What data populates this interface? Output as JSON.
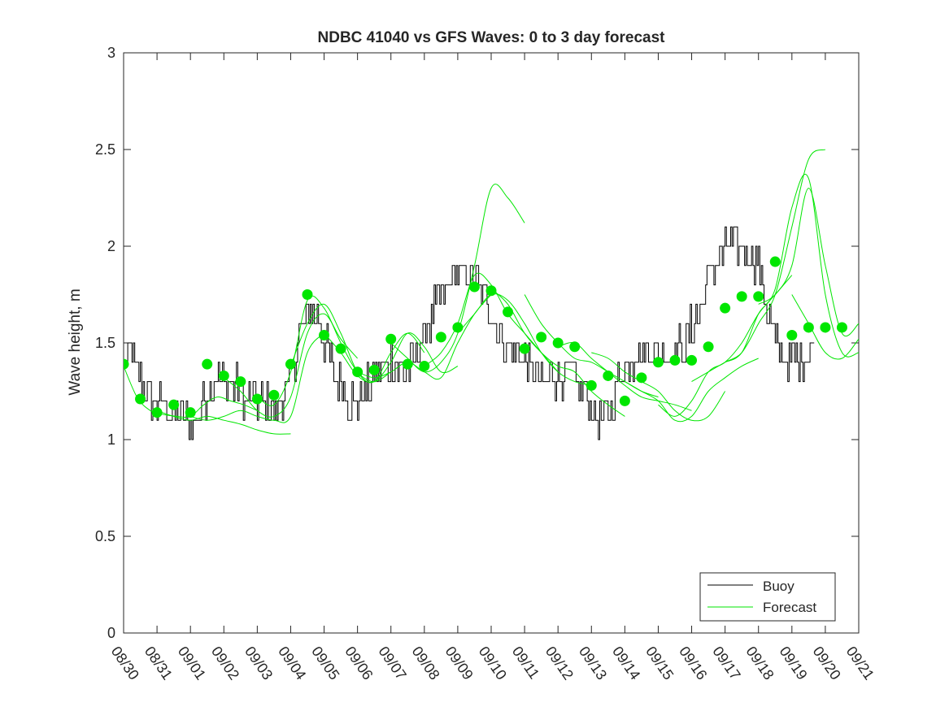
{
  "chart_data": {
    "type": "line",
    "title": "NDBC 41040 vs GFS Waves: 0 to 3 day forecast",
    "ylabel": "Wave height, m",
    "xlabel": "",
    "ylim": [
      0,
      3
    ],
    "yticks": [
      0,
      0.5,
      1,
      1.5,
      2,
      2.5,
      3
    ],
    "ytick_labels": [
      "0",
      "0.5",
      "1",
      "1.5",
      "2",
      "2.5",
      "3"
    ],
    "x_range_days": [
      0,
      22
    ],
    "xticks": [
      "08/30",
      "08/31",
      "09/01",
      "09/02",
      "09/03",
      "09/04",
      "09/05",
      "09/06",
      "09/07",
      "09/08",
      "09/09",
      "09/10",
      "09/11",
      "09/12",
      "09/13",
      "09/14",
      "09/15",
      "09/16",
      "09/17",
      "09/18",
      "09/19",
      "09/20",
      "09/21"
    ],
    "legend": {
      "location": "bottom-right",
      "entries": [
        "Buoy",
        "Forecast"
      ]
    },
    "colors": {
      "buoy": "#000000",
      "forecast": "#00e600",
      "axis": "#262626"
    },
    "buoy_key_points": [
      [
        0.0,
        1.4
      ],
      [
        0.25,
        1.45
      ],
      [
        0.5,
        1.3
      ],
      [
        0.75,
        1.2
      ],
      [
        1.0,
        1.18
      ],
      [
        1.5,
        1.15
      ],
      [
        1.9,
        1.1
      ],
      [
        2.0,
        1.05
      ],
      [
        2.3,
        1.15
      ],
      [
        2.5,
        1.25
      ],
      [
        2.8,
        1.32
      ],
      [
        3.2,
        1.3
      ],
      [
        3.6,
        1.22
      ],
      [
        4.0,
        1.2
      ],
      [
        4.3,
        1.18
      ],
      [
        4.5,
        1.15
      ],
      [
        4.9,
        1.25
      ],
      [
        5.2,
        1.5
      ],
      [
        5.5,
        1.65
      ],
      [
        5.8,
        1.62
      ],
      [
        6.0,
        1.5
      ],
      [
        6.3,
        1.35
      ],
      [
        6.6,
        1.25
      ],
      [
        6.8,
        1.2
      ],
      [
        7.0,
        1.2
      ],
      [
        7.3,
        1.28
      ],
      [
        7.7,
        1.35
      ],
      [
        8.0,
        1.4
      ],
      [
        8.3,
        1.35
      ],
      [
        8.6,
        1.38
      ],
      [
        8.9,
        1.5
      ],
      [
        9.2,
        1.62
      ],
      [
        9.5,
        1.75
      ],
      [
        9.8,
        1.85
      ],
      [
        10.1,
        1.85
      ],
      [
        10.5,
        1.82
      ],
      [
        10.8,
        1.75
      ],
      [
        11.1,
        1.62
      ],
      [
        11.4,
        1.5
      ],
      [
        11.7,
        1.45
      ],
      [
        12.0,
        1.42
      ],
      [
        12.3,
        1.35
      ],
      [
        12.6,
        1.3
      ],
      [
        13.0,
        1.35
      ],
      [
        13.4,
        1.33
      ],
      [
        13.8,
        1.25
      ],
      [
        14.0,
        1.15
      ],
      [
        14.3,
        1.1
      ],
      [
        14.6,
        1.2
      ],
      [
        14.9,
        1.35
      ],
      [
        15.2,
        1.42
      ],
      [
        15.6,
        1.45
      ],
      [
        16.0,
        1.45
      ],
      [
        16.5,
        1.45
      ],
      [
        16.8,
        1.5
      ],
      [
        17.2,
        1.65
      ],
      [
        17.5,
        1.85
      ],
      [
        17.8,
        1.95
      ],
      [
        18.2,
        2.0
      ],
      [
        18.5,
        2.0
      ],
      [
        18.8,
        1.95
      ],
      [
        19.0,
        1.9
      ],
      [
        19.2,
        1.7
      ],
      [
        19.5,
        1.5
      ],
      [
        19.8,
        1.4
      ],
      [
        20.1,
        1.42
      ],
      [
        20.5,
        1.45
      ],
      [
        20.7,
        1.5
      ]
    ],
    "forecast_series": [
      {
        "name": "Forecast 08/30",
        "x": [
          0.0,
          0.4,
          0.8,
          1.2,
          1.6,
          2.0,
          2.4,
          2.8,
          3.2,
          3.6,
          4.0
        ],
        "y": [
          1.38,
          1.22,
          1.15,
          1.13,
          1.12,
          1.12,
          1.18,
          1.22,
          1.2,
          1.18,
          1.15
        ]
      },
      {
        "name": "Forecast 08/31",
        "x": [
          1.0,
          1.5,
          2.0,
          2.5,
          3.0,
          3.5,
          4.0,
          4.5,
          5.0
        ],
        "y": [
          1.15,
          1.12,
          1.1,
          1.12,
          1.1,
          1.08,
          1.05,
          1.03,
          1.03
        ]
      },
      {
        "name": "Forecast 09/01",
        "x": [
          2.0,
          2.5,
          3.0,
          3.5,
          4.0,
          4.5,
          5.0,
          5.5,
          6.0
        ],
        "y": [
          1.12,
          1.1,
          1.12,
          1.15,
          1.12,
          1.1,
          1.12,
          1.45,
          1.55
        ]
      },
      {
        "name": "Forecast 09/02",
        "x": [
          3.0,
          3.5,
          4.0,
          4.5,
          5.0,
          5.5,
          6.0,
          6.5,
          7.0
        ],
        "y": [
          1.32,
          1.25,
          1.15,
          1.12,
          1.22,
          1.55,
          1.65,
          1.52,
          1.42
        ]
      },
      {
        "name": "Forecast 09/03",
        "x": [
          4.0,
          4.5,
          5.0,
          5.5,
          6.0,
          6.5,
          7.0,
          7.5,
          8.0
        ],
        "y": [
          1.22,
          1.18,
          1.35,
          1.72,
          1.68,
          1.5,
          1.35,
          1.3,
          1.35
        ]
      },
      {
        "name": "Forecast 09/04",
        "x": [
          5.0,
          5.5,
          6.0,
          6.5,
          7.0,
          7.5,
          8.0,
          8.5,
          9.0
        ],
        "y": [
          1.38,
          1.6,
          1.7,
          1.55,
          1.35,
          1.3,
          1.45,
          1.55,
          1.45
        ]
      },
      {
        "name": "Forecast 09/05",
        "x": [
          6.0,
          6.5,
          7.0,
          7.5,
          8.0,
          8.5,
          9.0,
          9.5,
          10.0
        ],
        "y": [
          1.55,
          1.45,
          1.33,
          1.3,
          1.4,
          1.55,
          1.48,
          1.35,
          1.38
        ]
      },
      {
        "name": "Forecast 09/06",
        "x": [
          7.0,
          7.5,
          8.0,
          8.5,
          9.0,
          9.5,
          10.0,
          10.5,
          11.0
        ],
        "y": [
          1.35,
          1.32,
          1.35,
          1.4,
          1.35,
          1.32,
          1.5,
          1.65,
          1.75
        ]
      },
      {
        "name": "Forecast 09/07",
        "x": [
          8.0,
          8.5,
          9.0,
          9.5,
          10.0,
          10.5,
          11.0,
          11.5,
          12.0
        ],
        "y": [
          1.5,
          1.42,
          1.35,
          1.4,
          1.55,
          1.9,
          2.3,
          2.25,
          2.12
        ]
      },
      {
        "name": "Forecast 09/08",
        "x": [
          9.0,
          9.5,
          10.0,
          10.5,
          11.0,
          11.5,
          12.0,
          12.5,
          13.0
        ],
        "y": [
          1.38,
          1.45,
          1.6,
          1.85,
          1.8,
          1.65,
          1.55,
          1.45,
          1.35
        ]
      },
      {
        "name": "Forecast 09/09",
        "x": [
          10.0,
          10.5,
          11.0,
          11.5,
          12.0,
          12.5,
          13.0,
          13.5,
          14.0
        ],
        "y": [
          1.55,
          1.65,
          1.75,
          1.72,
          1.6,
          1.45,
          1.35,
          1.3,
          1.28
        ]
      },
      {
        "name": "Forecast 09/10",
        "x": [
          11.0,
          11.5,
          12.0,
          12.5,
          13.0,
          13.5,
          14.0,
          14.5,
          15.0
        ],
        "y": [
          1.78,
          1.7,
          1.55,
          1.45,
          1.38,
          1.35,
          1.25,
          1.18,
          1.12
        ]
      },
      {
        "name": "Forecast 09/11",
        "x": [
          12.0,
          12.5,
          13.0,
          13.5,
          14.0,
          14.5,
          15.0,
          15.5,
          16.0
        ],
        "y": [
          1.75,
          1.6,
          1.5,
          1.42,
          1.4,
          1.35,
          1.3,
          1.25,
          1.22
        ]
      },
      {
        "name": "Forecast 09/12",
        "x": [
          13.0,
          13.5,
          14.0,
          14.5,
          15.0,
          15.5,
          16.0,
          16.5,
          17.0
        ],
        "y": [
          1.48,
          1.5,
          1.42,
          1.35,
          1.28,
          1.22,
          1.2,
          1.18,
          1.15
        ]
      },
      {
        "name": "Forecast 09/13",
        "x": [
          14.0,
          14.5,
          15.0,
          15.5,
          16.0,
          16.5,
          17.0,
          17.5,
          18.0
        ],
        "y": [
          1.45,
          1.42,
          1.35,
          1.3,
          1.25,
          1.15,
          1.1,
          1.12,
          1.25
        ]
      },
      {
        "name": "Forecast 09/14",
        "x": [
          15.0,
          15.5,
          16.0,
          16.5,
          17.0,
          17.5,
          18.0,
          18.5,
          19.0
        ],
        "y": [
          1.3,
          1.25,
          1.2,
          1.1,
          1.12,
          1.25,
          1.32,
          1.38,
          1.42
        ]
      },
      {
        "name": "Forecast 09/15",
        "x": [
          16.0,
          16.5,
          17.0,
          17.5,
          18.0,
          18.5,
          19.0,
          19.5,
          20.0
        ],
        "y": [
          1.18,
          1.12,
          1.2,
          1.35,
          1.4,
          1.5,
          1.65,
          1.75,
          1.85
        ]
      },
      {
        "name": "Forecast 09/16",
        "x": [
          17.0,
          17.5,
          18.0,
          18.5,
          19.0,
          19.5,
          20.0,
          20.5,
          21.0
        ],
        "y": [
          1.3,
          1.35,
          1.4,
          1.45,
          1.6,
          1.75,
          2.1,
          2.45,
          2.5
        ]
      },
      {
        "name": "Forecast 09/17",
        "x": [
          18.0,
          18.5,
          19.0,
          19.5,
          20.0,
          20.5,
          21.0,
          21.5,
          22.0
        ],
        "y": [
          1.4,
          1.45,
          1.65,
          1.78,
          2.2,
          2.35,
          1.75,
          1.45,
          1.45
        ]
      },
      {
        "name": "Forecast 09/18",
        "x": [
          19.0,
          19.5,
          20.0,
          20.5,
          21.0,
          21.5,
          22.0
        ],
        "y": [
          1.7,
          1.75,
          1.9,
          2.3,
          1.9,
          1.55,
          1.6
        ]
      },
      {
        "name": "Forecast 09/19",
        "x": [
          20.0,
          20.5,
          21.0,
          21.5,
          22.0
        ],
        "y": [
          1.75,
          1.6,
          1.45,
          1.42,
          1.52
        ]
      }
    ],
    "forecast_nowcast_markers": {
      "x": [
        0,
        0.5,
        1,
        1.5,
        2,
        2.5,
        3,
        3.5,
        4,
        4.5,
        5,
        5.5,
        6,
        6.5,
        7,
        7.5,
        8,
        8.5,
        9,
        9.5,
        10,
        10.5,
        11,
        11.5,
        12,
        12.5,
        13,
        13.5,
        14,
        14.5,
        15,
        15.5,
        16,
        16.5,
        17,
        17.5,
        18,
        18.5,
        19,
        19.5,
        20,
        20.5,
        21,
        21.5
      ],
      "y": [
        1.39,
        1.21,
        1.14,
        1.18,
        1.14,
        1.39,
        1.33,
        1.3,
        1.21,
        1.23,
        1.39,
        1.75,
        1.54,
        1.47,
        1.35,
        1.36,
        1.52,
        1.39,
        1.38,
        1.53,
        1.58,
        1.79,
        1.77,
        1.66,
        1.47,
        1.53,
        1.5,
        1.48,
        1.28,
        1.33,
        1.2,
        1.32,
        1.4,
        1.41,
        1.41,
        1.48,
        1.68,
        1.74,
        1.74,
        1.92,
        1.54,
        1.58,
        1.58,
        1.58
      ]
    }
  }
}
